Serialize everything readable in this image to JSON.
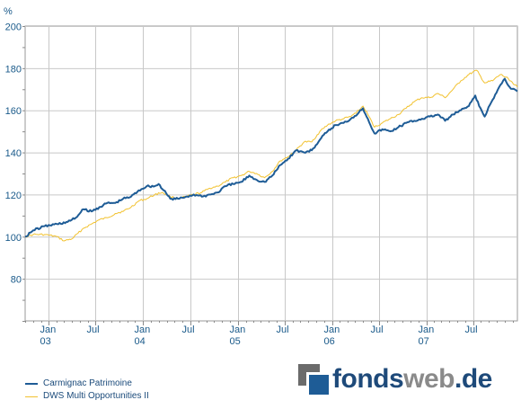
{
  "chart_data": {
    "type": "line",
    "unit_label": "%",
    "ylim": [
      60,
      200
    ],
    "y_ticks": [
      80,
      100,
      120,
      140,
      160,
      180,
      200
    ],
    "xlim": [
      "2002-10-01",
      "2007-12-20"
    ],
    "grid": true,
    "legend_position": "bottom-left",
    "x_ticks": [
      {
        "label": "Jan",
        "sub": "03",
        "date": "2003-01-01"
      },
      {
        "label": "Jul",
        "sub": "",
        "date": "2003-07-01"
      },
      {
        "label": "Jan",
        "sub": "04",
        "date": "2004-01-01"
      },
      {
        "label": "Jul",
        "sub": "",
        "date": "2004-07-01"
      },
      {
        "label": "Jan",
        "sub": "05",
        "date": "2005-01-01"
      },
      {
        "label": "Jul",
        "sub": "",
        "date": "2005-07-01"
      },
      {
        "label": "Jan",
        "sub": "06",
        "date": "2006-01-01"
      },
      {
        "label": "Jul",
        "sub": "",
        "date": "2006-07-01"
      },
      {
        "label": "Jan",
        "sub": "07",
        "date": "2007-01-01"
      },
      {
        "label": "Jul",
        "sub": "",
        "date": "2007-07-01"
      }
    ],
    "series": [
      {
        "name": "Carmignac Patrimoine",
        "color": "#1e5c96",
        "points": [
          [
            "2002-10-01",
            100
          ],
          [
            "2002-11-01",
            103
          ],
          [
            "2002-12-15",
            105
          ],
          [
            "2003-02-01",
            106
          ],
          [
            "2003-03-15",
            107
          ],
          [
            "2003-04-15",
            109
          ],
          [
            "2003-05-15",
            113
          ],
          [
            "2003-06-15",
            112
          ],
          [
            "2003-07-15",
            114
          ],
          [
            "2003-08-15",
            116
          ],
          [
            "2003-09-15",
            116
          ],
          [
            "2003-10-15",
            118
          ],
          [
            "2003-11-15",
            119
          ],
          [
            "2003-12-15",
            122
          ],
          [
            "2004-01-15",
            124
          ],
          [
            "2004-02-15",
            124
          ],
          [
            "2004-03-01",
            125
          ],
          [
            "2004-03-20",
            122
          ],
          [
            "2004-04-15",
            118
          ],
          [
            "2004-05-15",
            118
          ],
          [
            "2004-06-15",
            119
          ],
          [
            "2004-07-15",
            120
          ],
          [
            "2004-08-15",
            119
          ],
          [
            "2004-09-15",
            120
          ],
          [
            "2004-10-15",
            121
          ],
          [
            "2004-11-15",
            124
          ],
          [
            "2004-12-15",
            125
          ],
          [
            "2005-01-15",
            126
          ],
          [
            "2005-02-15",
            129
          ],
          [
            "2005-03-15",
            127
          ],
          [
            "2005-04-15",
            126
          ],
          [
            "2005-05-15",
            129
          ],
          [
            "2005-06-15",
            134
          ],
          [
            "2005-07-15",
            137
          ],
          [
            "2005-08-15",
            141
          ],
          [
            "2005-09-15",
            140
          ],
          [
            "2005-10-15",
            141
          ],
          [
            "2005-11-15",
            146
          ],
          [
            "2005-12-15",
            150
          ],
          [
            "2006-01-15",
            153
          ],
          [
            "2006-02-15",
            154
          ],
          [
            "2006-03-15",
            156
          ],
          [
            "2006-04-15",
            159
          ],
          [
            "2006-05-01",
            161
          ],
          [
            "2006-05-20",
            156
          ],
          [
            "2006-06-15",
            149
          ],
          [
            "2006-07-15",
            151
          ],
          [
            "2006-08-15",
            150
          ],
          [
            "2006-09-15",
            152
          ],
          [
            "2006-10-15",
            154
          ],
          [
            "2006-11-15",
            155
          ],
          [
            "2006-12-15",
            156
          ],
          [
            "2007-01-15",
            157
          ],
          [
            "2007-02-15",
            158
          ],
          [
            "2007-03-15",
            155
          ],
          [
            "2007-04-15",
            158
          ],
          [
            "2007-05-15",
            160
          ],
          [
            "2007-06-15",
            162
          ],
          [
            "2007-07-10",
            167
          ],
          [
            "2007-07-25",
            162
          ],
          [
            "2007-08-15",
            157
          ],
          [
            "2007-09-15",
            165
          ],
          [
            "2007-10-15",
            172
          ],
          [
            "2007-11-01",
            175
          ],
          [
            "2007-11-20",
            171
          ],
          [
            "2007-12-20",
            169
          ]
        ]
      },
      {
        "name": "DWS Multi Opportunities II",
        "color": "#f2c230",
        "points": [
          [
            "2002-10-01",
            100
          ],
          [
            "2002-11-01",
            101
          ],
          [
            "2002-12-15",
            101
          ],
          [
            "2003-02-01",
            100
          ],
          [
            "2003-03-01",
            98
          ],
          [
            "2003-04-01",
            99
          ],
          [
            "2003-05-15",
            104
          ],
          [
            "2003-06-15",
            106
          ],
          [
            "2003-07-15",
            108
          ],
          [
            "2003-08-15",
            109
          ],
          [
            "2003-09-15",
            111
          ],
          [
            "2003-10-15",
            112
          ],
          [
            "2003-11-15",
            114
          ],
          [
            "2003-12-15",
            117
          ],
          [
            "2004-01-15",
            118
          ],
          [
            "2004-02-15",
            120
          ],
          [
            "2004-03-15",
            121
          ],
          [
            "2004-04-15",
            119
          ],
          [
            "2004-05-15",
            118
          ],
          [
            "2004-06-15",
            119
          ],
          [
            "2004-07-15",
            120
          ],
          [
            "2004-08-15",
            121
          ],
          [
            "2004-09-15",
            123
          ],
          [
            "2004-10-15",
            124
          ],
          [
            "2004-11-15",
            126
          ],
          [
            "2004-12-15",
            128
          ],
          [
            "2005-01-15",
            129
          ],
          [
            "2005-02-15",
            131
          ],
          [
            "2005-03-15",
            130
          ],
          [
            "2005-04-15",
            128
          ],
          [
            "2005-05-15",
            131
          ],
          [
            "2005-06-15",
            136
          ],
          [
            "2005-07-15",
            138
          ],
          [
            "2005-08-15",
            141
          ],
          [
            "2005-09-15",
            145
          ],
          [
            "2005-10-15",
            145
          ],
          [
            "2005-11-15",
            150
          ],
          [
            "2005-12-15",
            153
          ],
          [
            "2006-01-15",
            155
          ],
          [
            "2006-02-15",
            156
          ],
          [
            "2006-03-15",
            157
          ],
          [
            "2006-04-15",
            160
          ],
          [
            "2006-05-01",
            162
          ],
          [
            "2006-05-20",
            158
          ],
          [
            "2006-06-15",
            152
          ],
          [
            "2006-07-15",
            154
          ],
          [
            "2006-08-15",
            156
          ],
          [
            "2006-09-15",
            158
          ],
          [
            "2006-10-15",
            161
          ],
          [
            "2006-11-15",
            164
          ],
          [
            "2006-12-15",
            166
          ],
          [
            "2007-01-15",
            166
          ],
          [
            "2007-02-15",
            168
          ],
          [
            "2007-03-15",
            166
          ],
          [
            "2007-04-15",
            170
          ],
          [
            "2007-05-15",
            174
          ],
          [
            "2007-06-15",
            177
          ],
          [
            "2007-07-15",
            179
          ],
          [
            "2007-08-15",
            173
          ],
          [
            "2007-09-15",
            174
          ],
          [
            "2007-10-15",
            177
          ],
          [
            "2007-11-15",
            175
          ],
          [
            "2007-12-20",
            171
          ]
        ]
      }
    ]
  },
  "legend": {
    "series_1": "Carmignac Patrimoine",
    "series_2": "DWS Multi Opportunities II"
  },
  "logo": {
    "part_1": "fonds",
    "part_2": "web",
    "part_3": ".de"
  }
}
